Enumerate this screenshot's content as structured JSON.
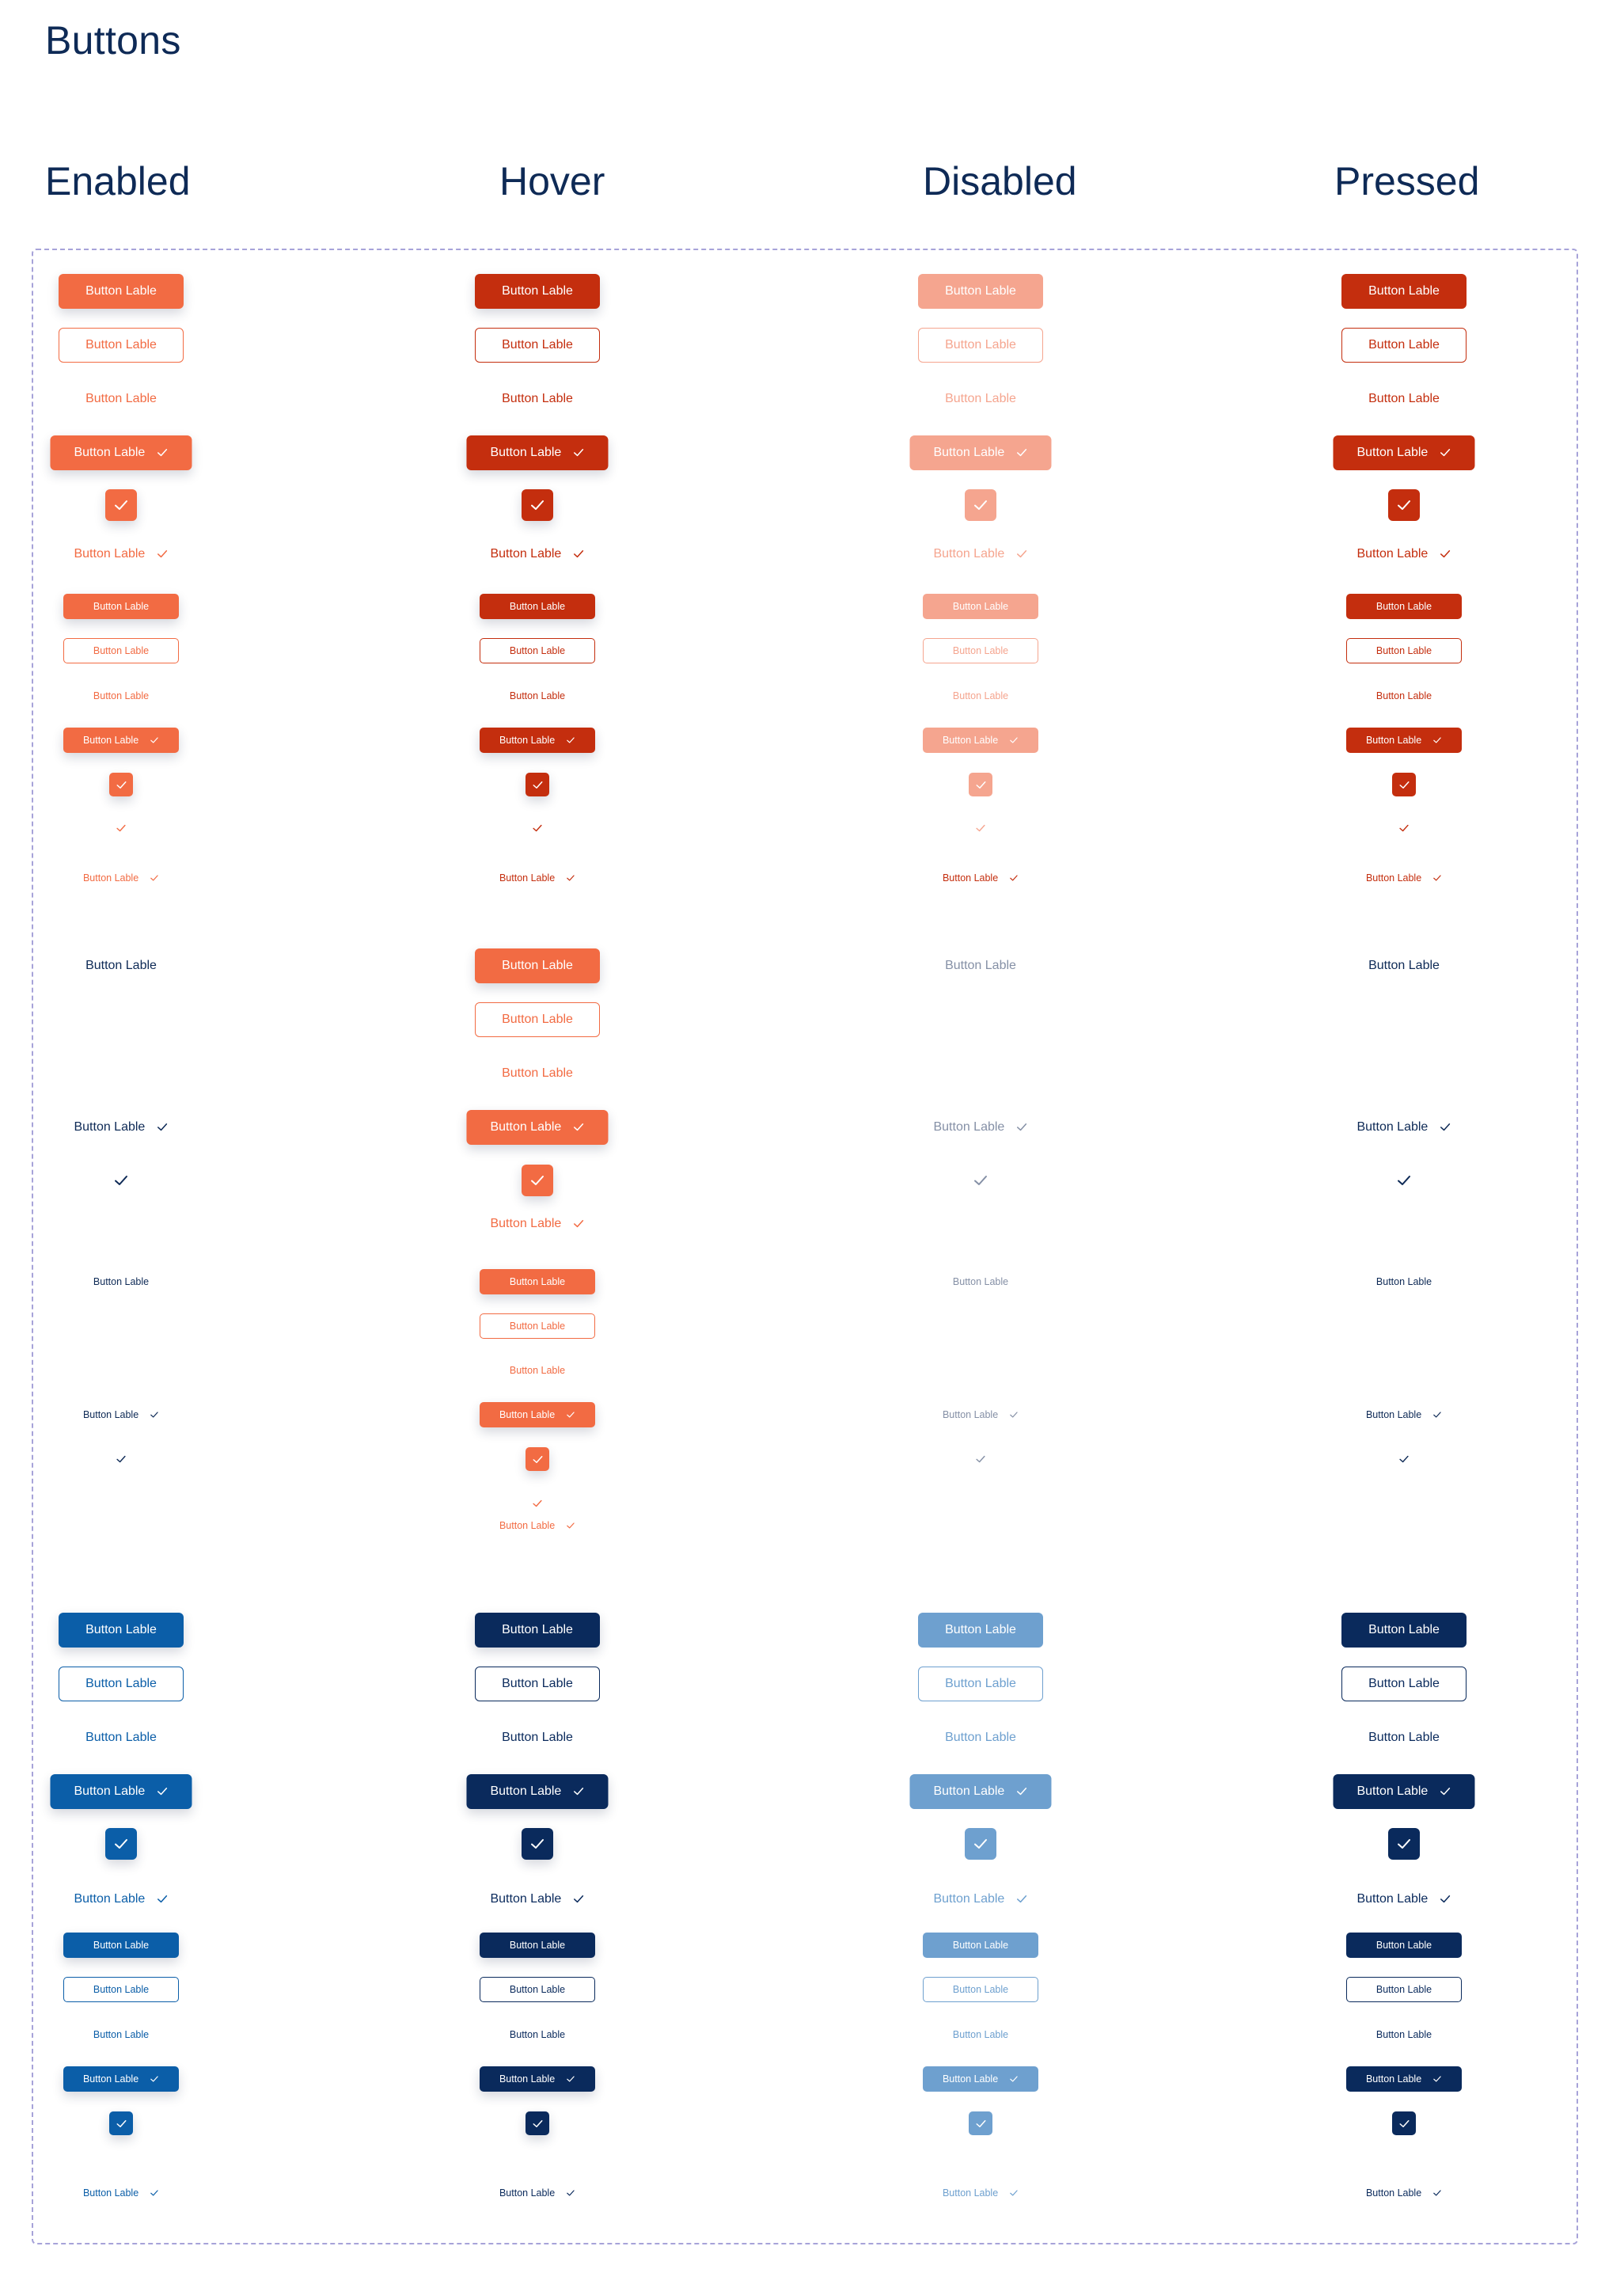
{
  "page": {
    "title": "Buttons"
  },
  "columns": [
    "Enabled",
    "Hover",
    "Disabled",
    "Pressed"
  ],
  "button_label": "Button Lable",
  "colors": {
    "orange": "#f26b43",
    "orange_dark": "#c42e0e",
    "orange_light": "#f5a58f",
    "navy": "#0e2a56",
    "navy_muted": "#8590a6",
    "blue": "#0b5ea8",
    "blue_dark": "#0a2a5c",
    "blue_light": "#6ea0cf"
  },
  "icons": {
    "check": "check-icon"
  },
  "rows": [
    {
      "section": "orange",
      "kind": "filled",
      "size": "l",
      "check": false,
      "states": {
        "enabled": "orange",
        "hover": "orange_dark",
        "disabled": "orange_light",
        "pressed": "orange_dark"
      }
    },
    {
      "section": "orange",
      "kind": "outline",
      "size": "l",
      "check": false,
      "states": {
        "enabled": "orange",
        "hover": "orange_dark",
        "disabled": "orange_light",
        "pressed": "orange_dark"
      }
    },
    {
      "section": "orange",
      "kind": "text",
      "size": "l",
      "check": false,
      "states": {
        "enabled": "orange",
        "hover": "orange_dark",
        "disabled": "orange_light",
        "pressed": "orange_dark"
      }
    },
    {
      "section": "orange",
      "kind": "filled",
      "size": "l",
      "check": true,
      "states": {
        "enabled": "orange",
        "hover": "orange_dark",
        "disabled": "orange_light",
        "pressed": "orange_dark"
      }
    },
    {
      "section": "orange",
      "kind": "checkbox",
      "size": "l",
      "check": true,
      "states": {
        "enabled": "orange",
        "hover": "orange_dark",
        "disabled": "orange_light",
        "pressed": "orange_dark"
      }
    },
    {
      "section": "orange",
      "kind": "text",
      "size": "l",
      "check": true,
      "states": {
        "enabled": "orange",
        "hover": "orange_dark",
        "disabled": "orange_light",
        "pressed": "orange_dark"
      }
    },
    {
      "section": "orange",
      "kind": "filled",
      "size": "s",
      "check": false,
      "states": {
        "enabled": "orange",
        "hover": "orange_dark",
        "disabled": "orange_light",
        "pressed": "orange_dark"
      }
    },
    {
      "section": "orange",
      "kind": "outline",
      "size": "s",
      "check": false,
      "states": {
        "enabled": "orange",
        "hover": "orange_dark",
        "disabled": "orange_light",
        "pressed": "orange_dark"
      }
    },
    {
      "section": "orange",
      "kind": "text",
      "size": "s",
      "check": false,
      "states": {
        "enabled": "orange",
        "hover": "orange_dark",
        "disabled": "orange_light",
        "pressed": "orange_dark"
      }
    },
    {
      "section": "orange",
      "kind": "filled",
      "size": "s",
      "check": true,
      "states": {
        "enabled": "orange",
        "hover": "orange_dark",
        "disabled": "orange_light",
        "pressed": "orange_dark"
      }
    },
    {
      "section": "orange",
      "kind": "checkbox",
      "size": "s",
      "check": true,
      "states": {
        "enabled": "orange",
        "hover": "orange_dark",
        "disabled": "orange_light",
        "pressed": "orange_dark"
      }
    },
    {
      "section": "orange",
      "kind": "check",
      "size": "s",
      "check": true,
      "states": {
        "enabled": "orange",
        "hover": "orange_dark",
        "disabled": "orange_light",
        "pressed": "orange_dark"
      }
    },
    {
      "section": "orange",
      "kind": "text",
      "size": "s",
      "check": true,
      "states": {
        "enabled": "orange",
        "hover": "orange_dark",
        "disabled": "orange_dark",
        "pressed": "orange_dark"
      }
    }
  ],
  "ghost_rows": [
    {
      "kind": "text",
      "size": "l",
      "check": false,
      "hover": {
        "kind": "filled",
        "color": "orange"
      }
    },
    {
      "kind": "none",
      "size": "l",
      "hover": {
        "kind": "outline",
        "color": "orange"
      }
    },
    {
      "kind": "none",
      "size": "l",
      "hover": {
        "kind": "text",
        "color": "orange"
      }
    },
    {
      "kind": "text",
      "size": "l",
      "check": true,
      "hover": {
        "kind": "filled",
        "color": "orange",
        "check": true
      }
    },
    {
      "kind": "check",
      "size": "l",
      "hover": {
        "kind": "checkbox",
        "color": "orange"
      }
    },
    {
      "kind": "none",
      "size": "l",
      "hover": {
        "kind": "text",
        "color": "orange",
        "check": true
      }
    },
    {
      "kind": "text",
      "size": "s",
      "check": false,
      "hover": {
        "kind": "filled",
        "color": "orange"
      }
    },
    {
      "kind": "none",
      "size": "s",
      "hover": {
        "kind": "outline",
        "color": "orange"
      }
    },
    {
      "kind": "none",
      "size": "s",
      "hover": {
        "kind": "text",
        "color": "orange"
      }
    },
    {
      "kind": "text",
      "size": "s",
      "check": true,
      "hover": {
        "kind": "filled",
        "color": "orange",
        "check": true
      }
    },
    {
      "kind": "check",
      "size": "s",
      "hover": {
        "kind": "checkbox",
        "color": "orange"
      }
    },
    {
      "kind": "none",
      "size": "s",
      "hover": {
        "kind": "check",
        "color": "orange"
      }
    },
    {
      "kind": "none",
      "size": "s",
      "hover": {
        "kind": "text",
        "color": "orange",
        "check": true
      }
    }
  ],
  "blue_rows": [
    {
      "kind": "filled",
      "size": "l",
      "check": false
    },
    {
      "kind": "outline",
      "size": "l",
      "check": false
    },
    {
      "kind": "text",
      "size": "l",
      "check": false
    },
    {
      "kind": "filled",
      "size": "l",
      "check": true
    },
    {
      "kind": "checkbox",
      "size": "l",
      "check": true
    },
    {
      "kind": "text",
      "size": "l",
      "check": true
    },
    {
      "kind": "filled",
      "size": "s",
      "check": false
    },
    {
      "kind": "outline",
      "size": "s",
      "check": false
    },
    {
      "kind": "text",
      "size": "s",
      "check": false
    },
    {
      "kind": "filled",
      "size": "s",
      "check": true
    },
    {
      "kind": "checkbox",
      "size": "s",
      "check": true
    },
    {
      "kind": "text",
      "size": "s",
      "check": true
    }
  ]
}
